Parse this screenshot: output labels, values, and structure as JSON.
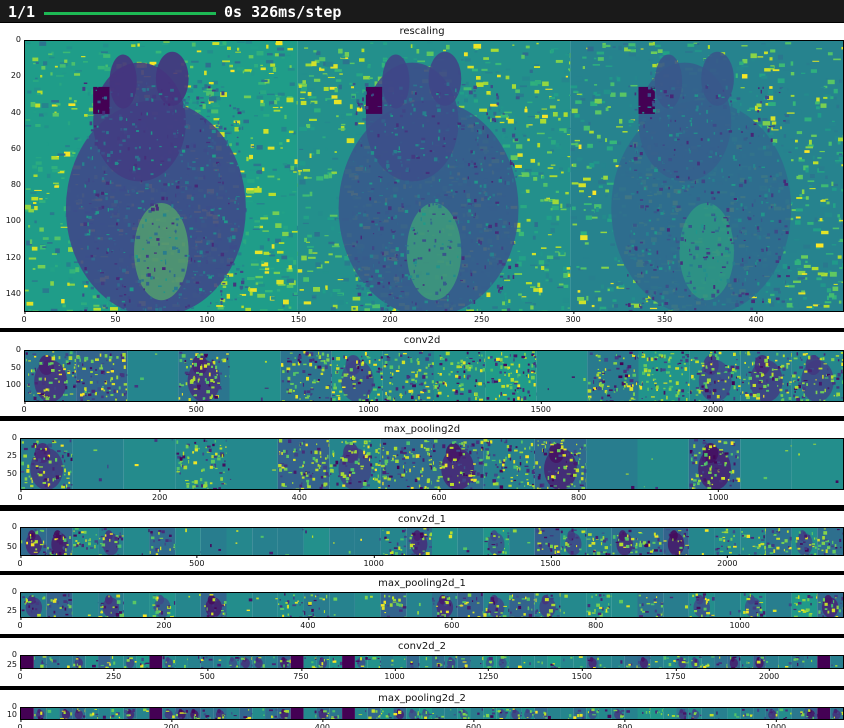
{
  "progress": {
    "count": "1/1",
    "timing": "0s 326ms/step",
    "fraction": 1.0,
    "color": "#1db954"
  },
  "colormap": "viridis",
  "panels": [
    {
      "key": "rescaling",
      "title": "rescaling",
      "top": 23,
      "height": 305,
      "plot": {
        "left": 24,
        "top": 17,
        "width": 820,
        "height": 272
      },
      "xticks": [
        {
          "v": 0,
          "label": "0"
        },
        {
          "v": 50,
          "label": "50"
        },
        {
          "v": 100,
          "label": "100"
        },
        {
          "v": 150,
          "label": "150"
        },
        {
          "v": 200,
          "label": "200"
        },
        {
          "v": 250,
          "label": "250"
        },
        {
          "v": 300,
          "label": "300"
        },
        {
          "v": 350,
          "label": "350"
        },
        {
          "v": 400,
          "label": "400"
        }
      ],
      "xmax": 448,
      "yticks": [
        {
          "v": 0,
          "label": "0"
        },
        {
          "v": 20,
          "label": "20"
        },
        {
          "v": 40,
          "label": "40"
        },
        {
          "v": 60,
          "label": "60"
        },
        {
          "v": 80,
          "label": "80"
        },
        {
          "v": 100,
          "label": "100"
        },
        {
          "v": 120,
          "label": "120"
        },
        {
          "v": 140,
          "label": "140"
        }
      ],
      "ymax": 150,
      "tiles": 3,
      "dark_tiles": [],
      "style": "dog"
    },
    {
      "key": "conv2d",
      "title": "conv2d",
      "top": 332,
      "height": 84,
      "plot": {
        "left": 24,
        "top": 18,
        "width": 820,
        "height": 52
      },
      "xticks": [
        {
          "v": 0,
          "label": "0"
        },
        {
          "v": 500,
          "label": "500"
        },
        {
          "v": 1000,
          "label": "1000"
        },
        {
          "v": 1500,
          "label": "1500"
        },
        {
          "v": 2000,
          "label": "2000"
        }
      ],
      "xmax": 2380,
      "yticks": [
        {
          "v": 0,
          "label": "0"
        },
        {
          "v": 50,
          "label": "50"
        },
        {
          "v": 100,
          "label": "100"
        }
      ],
      "ymax": 148,
      "tiles": 16,
      "dark_tiles": [],
      "style": "features"
    },
    {
      "key": "max_pooling2d",
      "title": "max_pooling2d",
      "top": 421,
      "height": 84,
      "plot": {
        "left": 20,
        "top": 17,
        "width": 824,
        "height": 52
      },
      "xticks": [
        {
          "v": 0,
          "label": "0"
        },
        {
          "v": 200,
          "label": "200"
        },
        {
          "v": 400,
          "label": "400"
        },
        {
          "v": 600,
          "label": "600"
        },
        {
          "v": 800,
          "label": "800"
        },
        {
          "v": 1000,
          "label": "1000"
        }
      ],
      "xmax": 1180,
      "yticks": [
        {
          "v": 0,
          "label": "0"
        },
        {
          "v": 25,
          "label": "25"
        },
        {
          "v": 50,
          "label": "50"
        }
      ],
      "ymax": 73,
      "tiles": 16,
      "dark_tiles": [],
      "style": "features"
    },
    {
      "key": "conv2d_1",
      "title": "conv2d_1",
      "top": 511,
      "height": 60,
      "plot": {
        "left": 20,
        "top": 16,
        "width": 824,
        "height": 29
      },
      "xticks": [
        {
          "v": 0,
          "label": "0"
        },
        {
          "v": 500,
          "label": "500"
        },
        {
          "v": 1000,
          "label": "1000"
        },
        {
          "v": 1500,
          "label": "1500"
        },
        {
          "v": 2000,
          "label": "2000"
        }
      ],
      "xmax": 2330,
      "yticks": [
        {
          "v": 0,
          "label": "0"
        },
        {
          "v": 50,
          "label": "50"
        }
      ],
      "ymax": 71,
      "tiles": 32,
      "dark_tiles": [],
      "style": "features"
    },
    {
      "key": "max_pooling2d_1",
      "title": "max_pooling2d_1",
      "top": 575,
      "height": 59,
      "plot": {
        "left": 20,
        "top": 17,
        "width": 824,
        "height": 26
      },
      "xticks": [
        {
          "v": 0,
          "label": "0"
        },
        {
          "v": 200,
          "label": "200"
        },
        {
          "v": 400,
          "label": "400"
        },
        {
          "v": 600,
          "label": "600"
        },
        {
          "v": 800,
          "label": "800"
        },
        {
          "v": 1000,
          "label": "1000"
        }
      ],
      "xmax": 1145,
      "yticks": [
        {
          "v": 0,
          "label": "0"
        },
        {
          "v": 25,
          "label": "25"
        }
      ],
      "ymax": 35,
      "tiles": 32,
      "dark_tiles": [],
      "style": "features"
    },
    {
      "key": "conv2d_2",
      "title": "conv2d_2",
      "top": 638,
      "height": 48,
      "plot": {
        "left": 20,
        "top": 17,
        "width": 824,
        "height": 14
      },
      "xticks": [
        {
          "v": 0,
          "label": "0"
        },
        {
          "v": 250,
          "label": "250"
        },
        {
          "v": 500,
          "label": "500"
        },
        {
          "v": 750,
          "label": "750"
        },
        {
          "v": 1000,
          "label": "1000"
        },
        {
          "v": 1250,
          "label": "1250"
        },
        {
          "v": 1500,
          "label": "1500"
        },
        {
          "v": 1750,
          "label": "1750"
        },
        {
          "v": 2000,
          "label": "2000"
        }
      ],
      "xmax": 2200,
      "yticks": [
        {
          "v": 0,
          "label": "0"
        },
        {
          "v": 25,
          "label": "25"
        }
      ],
      "ymax": 34,
      "tiles": 64,
      "dark_tiles": [
        0,
        10,
        21,
        25,
        62
      ],
      "style": "features"
    },
    {
      "key": "max_pooling2d_2",
      "title": "max_pooling2d_2",
      "top": 690,
      "height": 38,
      "plot": {
        "left": 20,
        "top": 17,
        "width": 824,
        "height": 13
      },
      "xticks": [
        {
          "v": 0,
          "label": "0"
        },
        {
          "v": 200,
          "label": "200"
        },
        {
          "v": 400,
          "label": "400"
        },
        {
          "v": 600,
          "label": "600"
        },
        {
          "v": 800,
          "label": "800"
        },
        {
          "v": 1000,
          "label": "1000"
        }
      ],
      "xmax": 1090,
      "yticks": [
        {
          "v": 0,
          "label": "0"
        },
        {
          "v": 10,
          "label": "10"
        }
      ],
      "ymax": 17,
      "tiles": 64,
      "dark_tiles": [
        0,
        10,
        21,
        25,
        62
      ],
      "style": "features"
    }
  ]
}
